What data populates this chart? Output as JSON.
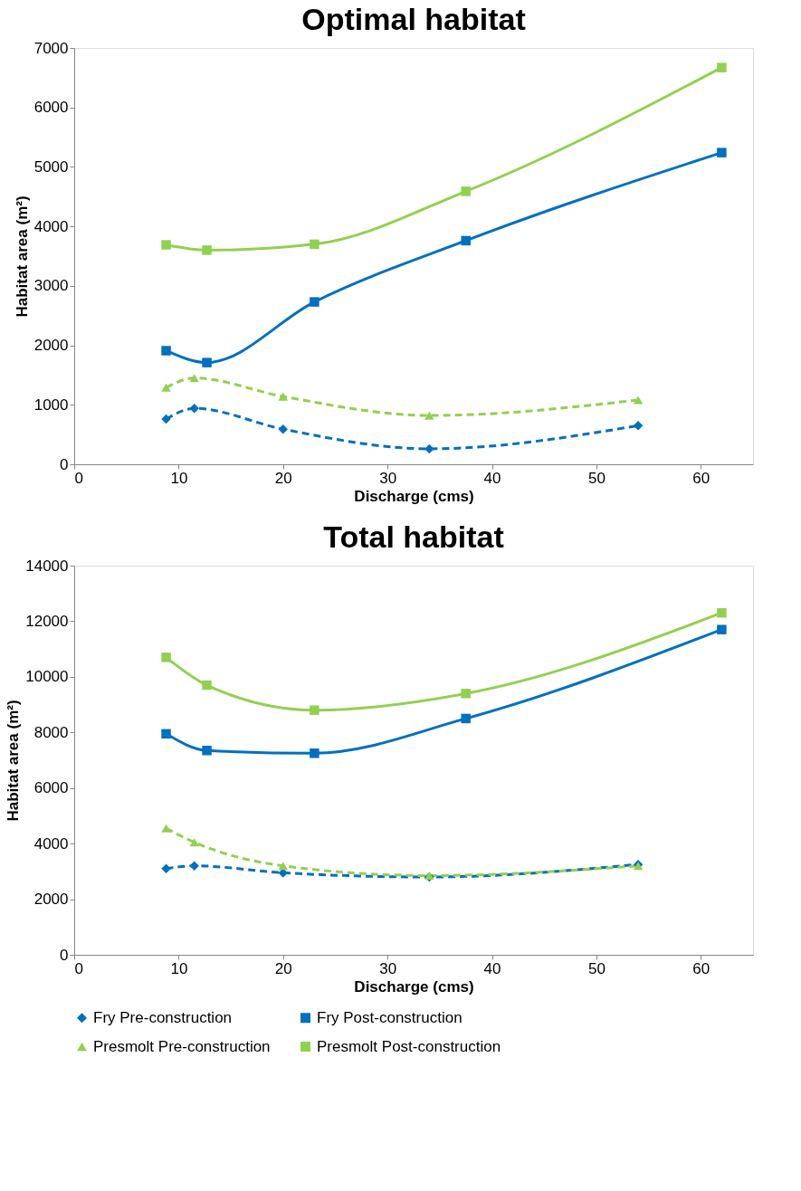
{
  "chart_data": [
    {
      "type": "line",
      "title": "Optimal habitat",
      "xlabel": "Discharge (cms)",
      "ylabel": "Habitat area (m²)",
      "xlim": [
        0,
        65
      ],
      "xticks": [
        0,
        10,
        20,
        30,
        40,
        50,
        60
      ],
      "ylim": [
        0,
        7000
      ],
      "yticks": [
        0,
        1000,
        2000,
        3000,
        4000,
        5000,
        6000,
        7000
      ],
      "grid": false,
      "legend": false,
      "series": [
        {
          "color": "#0070c0",
          "marker": "diamond",
          "line_style": "dashed",
          "x": [
            8.8,
            11.5,
            20,
            34,
            54
          ],
          "values": [
            760,
            940,
            590,
            260,
            650
          ]
        },
        {
          "color": "#0070c0",
          "marker": "square",
          "line_style": "solid",
          "x": [
            8.8,
            12.7,
            23,
            37.5,
            62
          ],
          "values": [
            1910,
            1710,
            2730,
            3760,
            5240
          ]
        },
        {
          "color": "#92d050",
          "marker": "triangle",
          "line_style": "dashed",
          "x": [
            8.8,
            11.5,
            20,
            34,
            54
          ],
          "values": [
            1290,
            1450,
            1140,
            820,
            1080
          ]
        },
        {
          "color": "#92d050",
          "marker": "square",
          "line_style": "solid",
          "x": [
            8.8,
            12.7,
            23,
            37.5,
            62
          ],
          "values": [
            3690,
            3600,
            3700,
            4590,
            6670
          ]
        }
      ]
    },
    {
      "type": "line",
      "title": "Total habitat",
      "xlabel": "Discharge (cms)",
      "ylabel": "Habitat area (m²)",
      "xlim": [
        0,
        65
      ],
      "xticks": [
        0,
        10,
        20,
        30,
        40,
        50,
        60
      ],
      "ylim": [
        0,
        14000
      ],
      "yticks": [
        0,
        2000,
        4000,
        6000,
        8000,
        10000,
        12000,
        14000
      ],
      "grid": false,
      "legend": "bottom",
      "series": [
        {
          "name": "Fry Pre-construction",
          "color": "#0070c0",
          "marker": "diamond",
          "line_style": "dashed",
          "x": [
            8.8,
            11.5,
            20,
            34,
            54
          ],
          "values": [
            3100,
            3200,
            2950,
            2800,
            3250
          ]
        },
        {
          "name": "Fry Post-construction",
          "color": "#0070c0",
          "marker": "square",
          "line_style": "solid",
          "x": [
            8.8,
            12.7,
            23,
            37.5,
            62
          ],
          "values": [
            7950,
            7350,
            7250,
            8500,
            11700
          ]
        },
        {
          "name": "Presmolt Pre-construction",
          "color": "#92d050",
          "marker": "triangle",
          "line_style": "dashed",
          "x": [
            8.8,
            11.5,
            20,
            34,
            54
          ],
          "values": [
            4550,
            4050,
            3200,
            2850,
            3200
          ]
        },
        {
          "name": "Presmolt Post-construction",
          "color": "#92d050",
          "marker": "square",
          "line_style": "solid",
          "x": [
            8.8,
            12.7,
            23,
            37.5,
            62
          ],
          "values": [
            10700,
            9700,
            8800,
            9400,
            12300
          ]
        }
      ]
    }
  ]
}
